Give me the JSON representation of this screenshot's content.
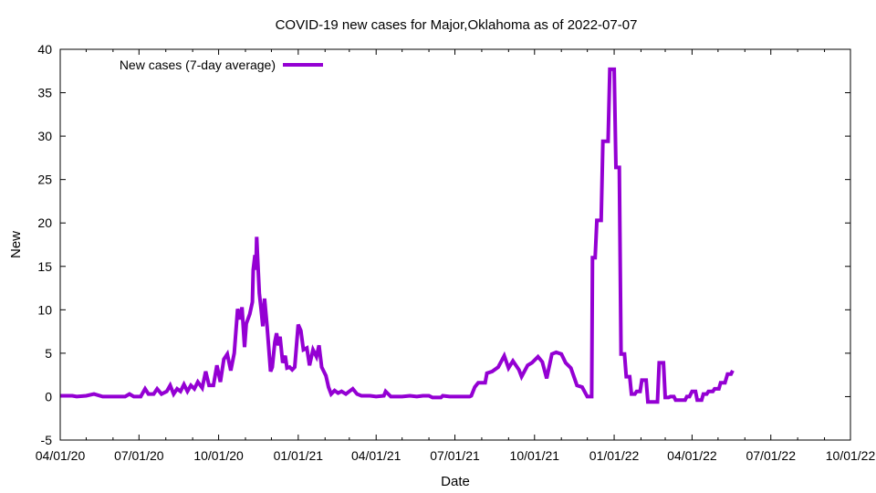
{
  "chart_data": {
    "type": "line",
    "title": "COVID-19 new cases for Major,Oklahoma as of 2022-07-07",
    "xlabel": "Date",
    "ylabel": "New",
    "xlim": [
      "2020-04-01",
      "2022-10-01"
    ],
    "ylim": [
      -5,
      40
    ],
    "y_ticks": [
      -5,
      0,
      5,
      10,
      15,
      20,
      25,
      30,
      35,
      40
    ],
    "x_ticks": [
      "2020-04-01",
      "2020-07-01",
      "2020-10-01",
      "2021-01-01",
      "2021-04-01",
      "2021-07-01",
      "2021-10-01",
      "2022-01-01",
      "2022-04-01",
      "2022-07-01",
      "2022-10-01"
    ],
    "x_tick_labels": [
      "04/01/20",
      "07/01/20",
      "10/01/20",
      "01/01/21",
      "04/01/21",
      "07/01/21",
      "10/01/21",
      "01/01/22",
      "04/01/22",
      "07/01/22",
      "10/01/22"
    ],
    "grid": false,
    "legend_position": "top-left",
    "color": "#9400d3",
    "series": [
      {
        "name": "New cases (7-day average)",
        "points": [
          [
            "2020-04-01",
            0.1
          ],
          [
            "2020-04-15",
            0.1
          ],
          [
            "2020-04-20",
            0.0
          ],
          [
            "2020-05-01",
            0.1
          ],
          [
            "2020-05-10",
            0.3
          ],
          [
            "2020-05-20",
            0.0
          ],
          [
            "2020-06-01",
            0.0
          ],
          [
            "2020-06-15",
            0.0
          ],
          [
            "2020-06-20",
            0.3
          ],
          [
            "2020-06-25",
            0.0
          ],
          [
            "2020-07-03",
            0.0
          ],
          [
            "2020-07-08",
            0.9
          ],
          [
            "2020-07-12",
            0.3
          ],
          [
            "2020-07-18",
            0.3
          ],
          [
            "2020-07-22",
            0.9
          ],
          [
            "2020-07-27",
            0.3
          ],
          [
            "2020-08-02",
            0.6
          ],
          [
            "2020-08-06",
            1.3
          ],
          [
            "2020-08-10",
            0.3
          ],
          [
            "2020-08-14",
            0.9
          ],
          [
            "2020-08-18",
            0.6
          ],
          [
            "2020-08-22",
            1.4
          ],
          [
            "2020-08-26",
            0.6
          ],
          [
            "2020-08-30",
            1.3
          ],
          [
            "2020-09-03",
            0.9
          ],
          [
            "2020-09-07",
            1.7
          ],
          [
            "2020-09-12",
            1.0
          ],
          [
            "2020-09-16",
            2.9
          ],
          [
            "2020-09-20",
            1.3
          ],
          [
            "2020-09-25",
            1.3
          ],
          [
            "2020-09-29",
            3.6
          ],
          [
            "2020-10-03",
            1.7
          ],
          [
            "2020-10-07",
            4.3
          ],
          [
            "2020-10-11",
            4.9
          ],
          [
            "2020-10-15",
            3.0
          ],
          [
            "2020-10-19",
            5.0
          ],
          [
            "2020-10-23",
            10.1
          ],
          [
            "2020-10-26",
            8.9
          ],
          [
            "2020-10-28",
            10.3
          ],
          [
            "2020-10-31",
            5.7
          ],
          [
            "2020-11-02",
            8.4
          ],
          [
            "2020-11-06",
            9.5
          ],
          [
            "2020-11-09",
            10.9
          ],
          [
            "2020-11-10",
            14.6
          ],
          [
            "2020-11-12",
            16.3
          ],
          [
            "2020-11-13",
            14.6
          ],
          [
            "2020-11-14",
            18.4
          ],
          [
            "2020-11-15",
            16.0
          ],
          [
            "2020-11-17",
            11.9
          ],
          [
            "2020-11-19",
            10.1
          ],
          [
            "2020-11-21",
            8.1
          ],
          [
            "2020-11-23",
            11.3
          ],
          [
            "2020-11-26",
            8.1
          ],
          [
            "2020-11-30",
            2.9
          ],
          [
            "2020-12-02",
            3.4
          ],
          [
            "2020-12-05",
            6.3
          ],
          [
            "2020-12-07",
            7.3
          ],
          [
            "2020-12-09",
            5.9
          ],
          [
            "2020-12-11",
            6.9
          ],
          [
            "2020-12-14",
            3.9
          ],
          [
            "2020-12-17",
            4.7
          ],
          [
            "2020-12-19",
            3.3
          ],
          [
            "2020-12-22",
            3.4
          ],
          [
            "2020-12-25",
            3.1
          ],
          [
            "2020-12-28",
            3.4
          ],
          [
            "2021-01-01",
            8.3
          ],
          [
            "2021-01-04",
            7.6
          ],
          [
            "2021-01-07",
            5.4
          ],
          [
            "2021-01-11",
            5.6
          ],
          [
            "2021-01-14",
            3.6
          ],
          [
            "2021-01-18",
            5.4
          ],
          [
            "2021-01-22",
            4.6
          ],
          [
            "2021-01-25",
            5.9
          ],
          [
            "2021-01-28",
            3.4
          ],
          [
            "2021-02-02",
            2.4
          ],
          [
            "2021-02-05",
            1.1
          ],
          [
            "2021-02-08",
            0.3
          ],
          [
            "2021-02-12",
            0.7
          ],
          [
            "2021-02-16",
            0.4
          ],
          [
            "2021-02-20",
            0.6
          ],
          [
            "2021-02-25",
            0.3
          ],
          [
            "2021-03-01",
            0.6
          ],
          [
            "2021-03-05",
            0.9
          ],
          [
            "2021-03-10",
            0.3
          ],
          [
            "2021-03-15",
            0.1
          ],
          [
            "2021-03-25",
            0.1
          ],
          [
            "2021-04-01",
            0.0
          ],
          [
            "2021-04-10",
            0.1
          ],
          [
            "2021-04-12",
            0.6
          ],
          [
            "2021-04-18",
            0.0
          ],
          [
            "2021-05-01",
            0.0
          ],
          [
            "2021-05-10",
            0.1
          ],
          [
            "2021-05-18",
            0.0
          ],
          [
            "2021-05-25",
            0.1
          ],
          [
            "2021-06-01",
            0.1
          ],
          [
            "2021-06-05",
            -0.1
          ],
          [
            "2021-06-15",
            -0.1
          ],
          [
            "2021-06-17",
            0.1
          ],
          [
            "2021-06-25",
            0.0
          ],
          [
            "2021-07-05",
            0.0
          ],
          [
            "2021-07-18",
            0.0
          ],
          [
            "2021-07-20",
            0.1
          ],
          [
            "2021-07-24",
            1.1
          ],
          [
            "2021-07-28",
            1.6
          ],
          [
            "2021-08-05",
            1.6
          ],
          [
            "2021-08-07",
            2.7
          ],
          [
            "2021-08-13",
            2.9
          ],
          [
            "2021-08-20",
            3.4
          ],
          [
            "2021-08-27",
            4.7
          ],
          [
            "2021-09-01",
            3.3
          ],
          [
            "2021-09-06",
            4.1
          ],
          [
            "2021-09-13",
            3.1
          ],
          [
            "2021-09-16",
            2.3
          ],
          [
            "2021-09-23",
            3.6
          ],
          [
            "2021-09-28",
            3.9
          ],
          [
            "2021-10-05",
            4.6
          ],
          [
            "2021-10-10",
            4.0
          ],
          [
            "2021-10-15",
            2.1
          ],
          [
            "2021-10-21",
            4.9
          ],
          [
            "2021-10-26",
            5.1
          ],
          [
            "2021-11-01",
            4.9
          ],
          [
            "2021-11-06",
            3.9
          ],
          [
            "2021-11-12",
            3.3
          ],
          [
            "2021-11-19",
            1.3
          ],
          [
            "2021-11-25",
            1.1
          ],
          [
            "2021-12-01",
            0.0
          ],
          [
            "2021-12-06",
            0.0
          ],
          [
            "2021-12-07",
            16.0
          ],
          [
            "2021-12-10",
            16.0
          ],
          [
            "2021-12-12",
            20.3
          ],
          [
            "2021-12-17",
            20.3
          ],
          [
            "2021-12-19",
            29.4
          ],
          [
            "2021-12-25",
            29.4
          ],
          [
            "2021-12-27",
            37.7
          ],
          [
            "2022-01-01",
            37.7
          ],
          [
            "2022-01-03",
            26.4
          ],
          [
            "2022-01-07",
            26.4
          ],
          [
            "2022-01-09",
            4.9
          ],
          [
            "2022-01-13",
            4.9
          ],
          [
            "2022-01-15",
            2.3
          ],
          [
            "2022-01-19",
            2.3
          ],
          [
            "2022-01-21",
            0.3
          ],
          [
            "2022-01-25",
            0.3
          ],
          [
            "2022-01-27",
            0.6
          ],
          [
            "2022-01-31",
            0.6
          ],
          [
            "2022-02-02",
            1.9
          ],
          [
            "2022-02-07",
            1.9
          ],
          [
            "2022-02-09",
            -0.6
          ],
          [
            "2022-02-20",
            -0.6
          ],
          [
            "2022-02-22",
            3.9
          ],
          [
            "2022-02-27",
            3.9
          ],
          [
            "2022-03-01",
            -0.1
          ],
          [
            "2022-03-05",
            -0.1
          ],
          [
            "2022-03-07",
            0.0
          ],
          [
            "2022-03-11",
            0.0
          ],
          [
            "2022-03-13",
            -0.4
          ],
          [
            "2022-03-24",
            -0.4
          ],
          [
            "2022-03-26",
            0.0
          ],
          [
            "2022-03-29",
            0.0
          ],
          [
            "2022-04-01",
            0.6
          ],
          [
            "2022-04-05",
            0.6
          ],
          [
            "2022-04-07",
            -0.4
          ],
          [
            "2022-04-12",
            -0.4
          ],
          [
            "2022-04-14",
            0.3
          ],
          [
            "2022-04-18",
            0.3
          ],
          [
            "2022-04-20",
            0.6
          ],
          [
            "2022-04-25",
            0.6
          ],
          [
            "2022-04-27",
            0.9
          ],
          [
            "2022-05-02",
            0.9
          ],
          [
            "2022-05-04",
            1.6
          ],
          [
            "2022-05-09",
            1.6
          ],
          [
            "2022-05-12",
            2.6
          ],
          [
            "2022-05-16",
            2.6
          ],
          [
            "2022-05-18",
            3.0
          ]
        ]
      }
    ]
  }
}
